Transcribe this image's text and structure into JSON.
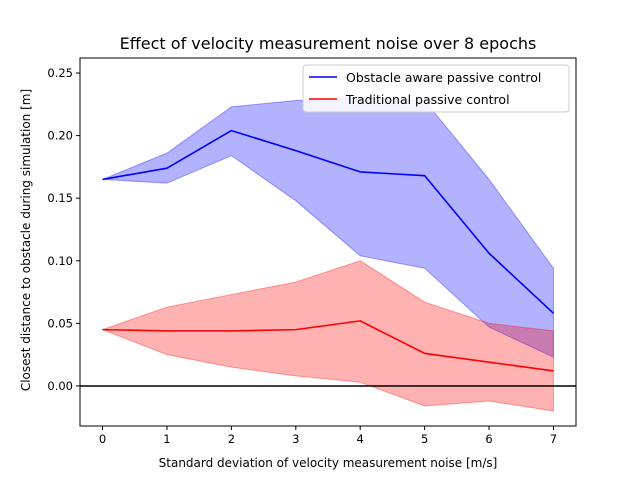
{
  "chart_data": {
    "type": "line",
    "title": "Effect of velocity measurement noise over 8 epochs",
    "xlabel": "Standard deviation of velocity measurement noise [m/s]",
    "ylabel": "Closest distance to obstacle during simulation [m]",
    "x": [
      0,
      1,
      2,
      3,
      4,
      5,
      6,
      7
    ],
    "xlim": [
      -0.35,
      7.35
    ],
    "ylim": [
      -0.032,
      0.262
    ],
    "xticks": [
      "0",
      "1",
      "2",
      "3",
      "4",
      "5",
      "6",
      "7"
    ],
    "yticks": [
      "0.00",
      "0.05",
      "0.10",
      "0.15",
      "0.20",
      "0.25"
    ],
    "legend_position": "top-right",
    "reference_line": {
      "y": 0.0,
      "color": "#000000"
    },
    "series": [
      {
        "name": "Obstacle aware passive control",
        "color": "#0000ff",
        "values": [
          0.165,
          0.174,
          0.204,
          0.188,
          0.171,
          0.168,
          0.106,
          0.058
        ],
        "band_upper": [
          0.165,
          0.186,
          0.223,
          0.228,
          0.23,
          0.228,
          0.165,
          0.094
        ],
        "band_lower": [
          0.165,
          0.162,
          0.184,
          0.148,
          0.104,
          0.094,
          0.047,
          0.023
        ]
      },
      {
        "name": "Traditional passive control",
        "color": "#ff0000",
        "values": [
          0.045,
          0.044,
          0.044,
          0.045,
          0.052,
          0.026,
          0.019,
          0.012
        ],
        "band_upper": [
          0.045,
          0.063,
          0.073,
          0.083,
          0.1,
          0.067,
          0.05,
          0.044
        ],
        "band_lower": [
          0.045,
          0.025,
          0.015,
          0.008,
          0.003,
          -0.016,
          -0.012,
          -0.02
        ]
      }
    ]
  }
}
